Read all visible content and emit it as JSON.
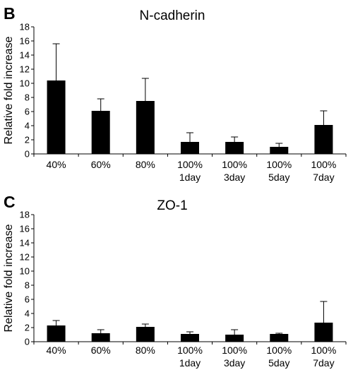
{
  "chart_data": [
    {
      "type": "bar",
      "panel_label": "B",
      "title": "N-cadherin",
      "xlabel": "",
      "ylabel": "Relative fold increase",
      "ylim": [
        0,
        18
      ],
      "yticks": [
        0,
        2,
        4,
        6,
        8,
        10,
        12,
        14,
        16,
        18
      ],
      "categories": [
        "40%",
        "60%",
        "80%",
        "100%\n1day",
        "100%\n3day",
        "100%\n5day",
        "100%\n7day"
      ],
      "values": [
        10.4,
        6.1,
        7.5,
        1.7,
        1.7,
        1.0,
        4.1
      ],
      "error_upper": [
        5.2,
        1.7,
        3.2,
        1.3,
        0.7,
        0.5,
        2.0
      ],
      "bar_color": "#000000",
      "grid": false
    },
    {
      "type": "bar",
      "panel_label": "C",
      "title": "ZO-1",
      "xlabel": "",
      "ylabel": "Relative fold increase",
      "ylim": [
        0,
        18
      ],
      "yticks": [
        0,
        2,
        4,
        6,
        8,
        10,
        12,
        14,
        16,
        18
      ],
      "categories": [
        "40%",
        "60%",
        "80%",
        "100%\n1day",
        "100%\n3day",
        "100%\n5day",
        "100%\n7day"
      ],
      "values": [
        2.3,
        1.2,
        2.1,
        1.1,
        1.0,
        1.1,
        2.7
      ],
      "error_upper": [
        0.7,
        0.5,
        0.4,
        0.3,
        0.7,
        0.1,
        3.0
      ],
      "bar_color": "#000000",
      "grid": false
    }
  ]
}
